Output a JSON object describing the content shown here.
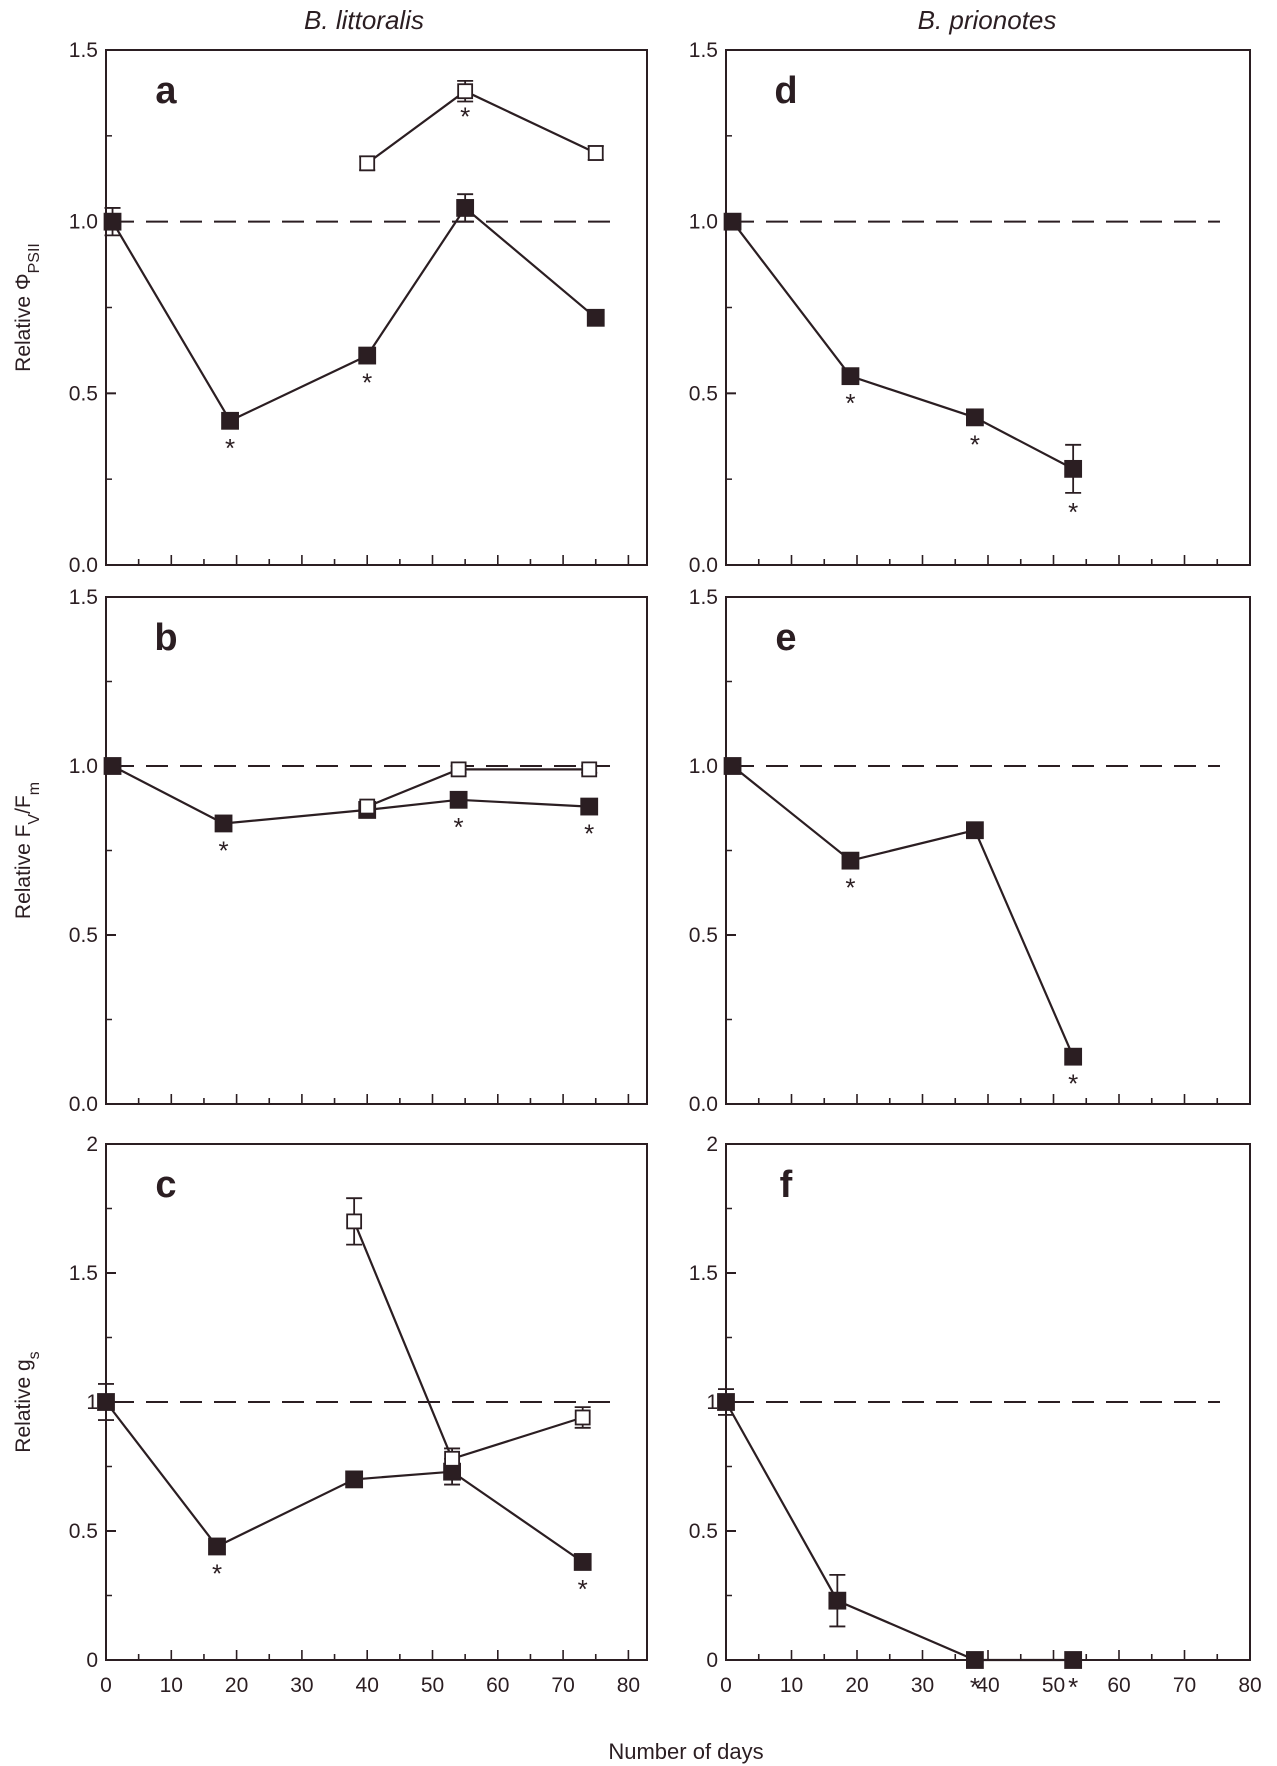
{
  "figure": {
    "column_titles": [
      "B. littoralis",
      "B. prionotes"
    ],
    "xlabel": "Number of days",
    "colors": {
      "ink": "#2b1e22",
      "open_marker_fill": "#ffffff",
      "background": "#ffffff"
    }
  },
  "chart_data": [
    {
      "type": "line",
      "panel": "a",
      "column": "B. littoralis",
      "ylabel": "Relative ΦPSII",
      "ylabel_parts": {
        "main": "Relative Φ",
        "sub": "PSII"
      },
      "xlim": [
        0,
        80
      ],
      "ylim": [
        0,
        1.5
      ],
      "yticks": [
        0,
        0.5,
        1.0,
        1.5
      ],
      "ytick_labels": [
        "0.0",
        "0.5",
        "1.0",
        "1.5"
      ],
      "reference_line": 1.0,
      "series": [
        {
          "marker": "filled-square",
          "x": [
            1,
            19,
            40,
            55,
            75
          ],
          "y": [
            1.0,
            0.42,
            0.61,
            1.04,
            0.72
          ],
          "err": [
            0.04,
            0.02,
            0.02,
            0.04,
            0.02
          ],
          "significant": [
            false,
            true,
            true,
            false,
            false
          ]
        },
        {
          "marker": "open-square",
          "x": [
            40,
            55,
            75
          ],
          "y": [
            1.17,
            1.38,
            1.2
          ],
          "err": [
            0.02,
            0.03,
            0.02
          ],
          "significant": [
            false,
            true,
            false
          ]
        }
      ]
    },
    {
      "type": "line",
      "panel": "b",
      "column": "B. littoralis",
      "ylabel": "Relative Fv/Fm",
      "ylabel_parts": {
        "main": "Relative F",
        "sub1": "V",
        "mid": "/F",
        "sub2": "m"
      },
      "xlim": [
        0,
        80
      ],
      "ylim": [
        0,
        1.5
      ],
      "yticks": [
        0,
        0.5,
        1.0,
        1.5
      ],
      "ytick_labels": [
        "0.0",
        "0.5",
        "1.0",
        "1.5"
      ],
      "reference_line": 1.0,
      "series": [
        {
          "marker": "filled-square",
          "x": [
            1,
            18,
            40,
            54,
            74
          ],
          "y": [
            1.0,
            0.83,
            0.87,
            0.9,
            0.88
          ],
          "err": [
            0.01,
            0.01,
            0.01,
            0.01,
            0.01
          ],
          "significant": [
            false,
            true,
            false,
            true,
            true
          ]
        },
        {
          "marker": "open-square",
          "x": [
            40,
            54,
            74
          ],
          "y": [
            0.88,
            0.99,
            0.99
          ],
          "err": [
            0.01,
            0.01,
            0.01
          ],
          "significant": [
            false,
            false,
            false
          ]
        }
      ]
    },
    {
      "type": "line",
      "panel": "c",
      "column": "B. littoralis",
      "ylabel": "Relative gs",
      "ylabel_parts": {
        "main": "Relative g",
        "sub": "s"
      },
      "xlim": [
        0,
        80
      ],
      "ylim": [
        0,
        2
      ],
      "yticks": [
        0,
        0.5,
        1,
        1.5,
        2
      ],
      "ytick_labels": [
        "0",
        "0.5",
        "1",
        "1.5",
        "2"
      ],
      "xticks": [
        0,
        10,
        20,
        30,
        40,
        50,
        60,
        70,
        80
      ],
      "xtick_labels": [
        "0",
        "10",
        "20",
        "30",
        "40",
        "50",
        "60",
        "70",
        "80"
      ],
      "reference_line": 1.0,
      "series": [
        {
          "marker": "filled-square",
          "x": [
            0,
            17,
            38,
            53,
            73
          ],
          "y": [
            1.0,
            0.44,
            0.7,
            0.73,
            0.38
          ],
          "err": [
            0.07,
            0.02,
            0.02,
            0.05,
            0.02
          ],
          "significant": [
            false,
            true,
            false,
            false,
            true
          ]
        },
        {
          "marker": "open-square",
          "x": [
            38,
            53,
            73
          ],
          "y": [
            1.7,
            0.78,
            0.94
          ],
          "err": [
            0.09,
            0.04,
            0.04
          ],
          "significant": [
            false,
            false,
            false
          ]
        }
      ]
    },
    {
      "type": "line",
      "panel": "d",
      "column": "B. prionotes",
      "ylabel": "",
      "xlim": [
        0,
        80
      ],
      "ylim": [
        0,
        1.5
      ],
      "yticks": [
        0,
        0.5,
        1.0,
        1.5
      ],
      "ytick_labels": [
        "0.0",
        "0.5",
        "1.0",
        "1.5"
      ],
      "reference_line": 1.0,
      "series": [
        {
          "marker": "filled-square",
          "x": [
            1,
            19,
            38,
            53
          ],
          "y": [
            1.0,
            0.55,
            0.43,
            0.28
          ],
          "err": [
            0.01,
            0.01,
            0.01,
            0.07
          ],
          "significant": [
            false,
            true,
            true,
            true
          ]
        }
      ]
    },
    {
      "type": "line",
      "panel": "e",
      "column": "B. prionotes",
      "ylabel": "",
      "xlim": [
        0,
        80
      ],
      "ylim": [
        0,
        1.5
      ],
      "yticks": [
        0,
        0.5,
        1.0,
        1.5
      ],
      "ytick_labels": [
        "0.0",
        "0.5",
        "1.0",
        "1.5"
      ],
      "reference_line": 1.0,
      "series": [
        {
          "marker": "filled-square",
          "x": [
            1,
            19,
            38,
            53
          ],
          "y": [
            1.0,
            0.72,
            0.81,
            0.14
          ],
          "err": [
            0.01,
            0.01,
            0.01,
            0.01
          ],
          "significant": [
            false,
            true,
            false,
            true
          ]
        }
      ]
    },
    {
      "type": "line",
      "panel": "f",
      "column": "B. prionotes",
      "ylabel": "",
      "xlim": [
        0,
        80
      ],
      "ylim": [
        0,
        2
      ],
      "yticks": [
        0,
        0.5,
        1,
        1.5,
        2
      ],
      "ytick_labels": [
        "0",
        "0.5",
        "1",
        "1.5",
        "2"
      ],
      "xticks": [
        0,
        10,
        20,
        30,
        40,
        50,
        60,
        70,
        80
      ],
      "xtick_labels": [
        "0",
        "10",
        "20",
        "30",
        "40",
        "50",
        "60",
        "70",
        "80"
      ],
      "reference_line": 1.0,
      "series": [
        {
          "marker": "filled-square",
          "x": [
            0,
            17,
            38,
            53
          ],
          "y": [
            1.0,
            0.23,
            0.0,
            0.0
          ],
          "err": [
            0.05,
            0.1,
            0.01,
            0.01
          ],
          "significant": [
            false,
            false,
            true,
            true
          ]
        }
      ]
    }
  ]
}
